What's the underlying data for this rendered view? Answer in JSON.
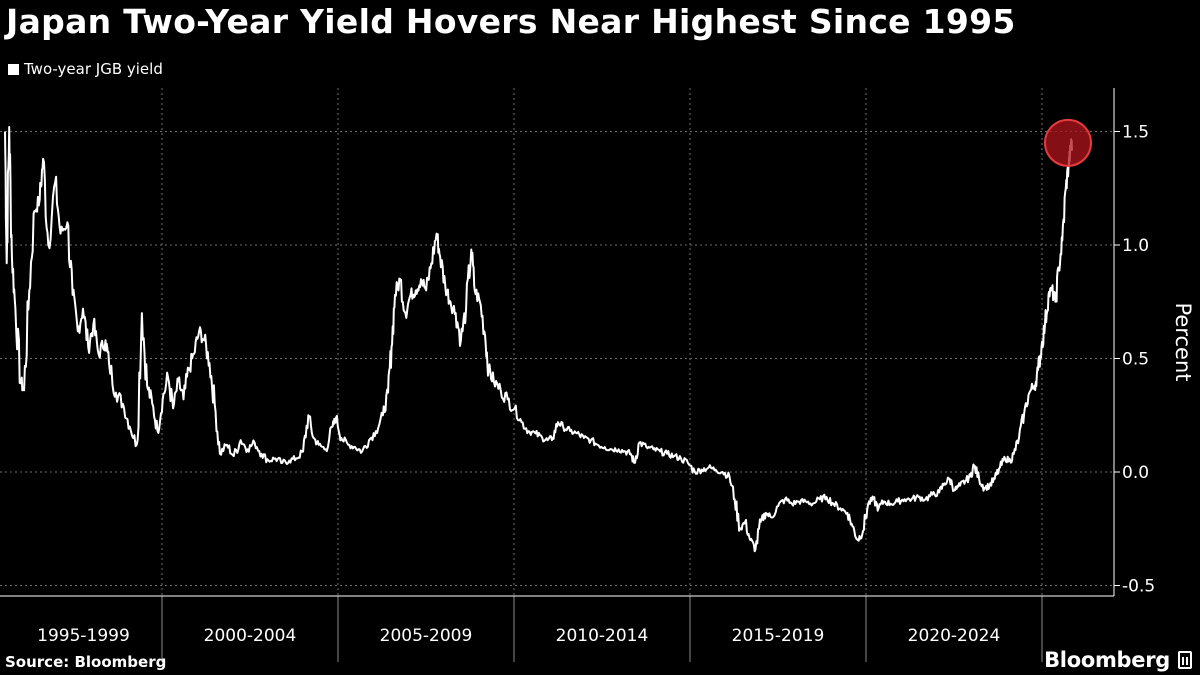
{
  "title": "Japan Two-Year Yield Hovers Near Highest Since 1995",
  "legend": {
    "label": "Two-year JGB yield"
  },
  "source": "Source: Bloomberg",
  "brand": {
    "name": "Bloomberg",
    "icon": "bloomberg-terminal-icon"
  },
  "colors": {
    "background": "#000000",
    "line": "#ffffff",
    "grid": "#6e6e6e",
    "highlight_fill": "#b0161c",
    "highlight_stroke": "#e63a3f"
  },
  "chart_data": {
    "type": "line",
    "title": "Japan Two-Year Yield Hovers Near Highest Since 1995",
    "ylabel": "Percent",
    "ylim": [
      -0.5,
      1.7
    ],
    "yticks": [
      "1.5",
      "1.0",
      "0.5",
      "0.0",
      "-0.5"
    ],
    "yaxis_side": "right",
    "grid": true,
    "x_categories": [
      "1995-1999",
      "2000-2004",
      "2005-2009",
      "2010-2014",
      "2015-2019",
      "2020-2024"
    ],
    "x_range": [
      1995.0,
      2025.9
    ],
    "highlight": {
      "x": 2025.75,
      "y": 1.45,
      "shape": "circle"
    },
    "series": [
      {
        "name": "Two-year JGB yield",
        "points": [
          [
            1995.0,
            1.5
          ],
          [
            1995.05,
            0.92
          ],
          [
            1995.12,
            1.52
          ],
          [
            1995.2,
            0.95
          ],
          [
            1995.3,
            0.72
          ],
          [
            1995.45,
            0.4
          ],
          [
            1995.55,
            0.36
          ],
          [
            1995.7,
            0.8
          ],
          [
            1995.85,
            1.15
          ],
          [
            1996.0,
            1.2
          ],
          [
            1996.1,
            1.38
          ],
          [
            1996.25,
            1.0
          ],
          [
            1996.45,
            1.28
          ],
          [
            1996.6,
            1.05
          ],
          [
            1996.8,
            1.1
          ],
          [
            1996.95,
            0.78
          ],
          [
            1997.1,
            0.62
          ],
          [
            1997.25,
            0.72
          ],
          [
            1997.4,
            0.55
          ],
          [
            1997.55,
            0.65
          ],
          [
            1997.7,
            0.52
          ],
          [
            1997.9,
            0.58
          ],
          [
            1998.0,
            0.48
          ],
          [
            1998.2,
            0.35
          ],
          [
            1998.4,
            0.3
          ],
          [
            1998.6,
            0.2
          ],
          [
            1998.8,
            0.12
          ],
          [
            1998.95,
            0.7
          ],
          [
            1999.1,
            0.38
          ],
          [
            1999.25,
            0.3
          ],
          [
            1999.4,
            0.18
          ],
          [
            1999.55,
            0.32
          ],
          [
            1999.7,
            0.42
          ],
          [
            1999.85,
            0.28
          ],
          [
            2000.0,
            0.4
          ],
          [
            2000.15,
            0.32
          ],
          [
            2000.3,
            0.45
          ],
          [
            2000.45,
            0.52
          ],
          [
            2000.6,
            0.62
          ],
          [
            2000.75,
            0.58
          ],
          [
            2000.9,
            0.48
          ],
          [
            2001.05,
            0.3
          ],
          [
            2001.2,
            0.08
          ],
          [
            2001.4,
            0.12
          ],
          [
            2001.6,
            0.07
          ],
          [
            2001.8,
            0.14
          ],
          [
            2002.0,
            0.1
          ],
          [
            2002.2,
            0.13
          ],
          [
            2002.4,
            0.08
          ],
          [
            2002.6,
            0.05
          ],
          [
            2002.8,
            0.06
          ],
          [
            2003.0,
            0.04
          ],
          [
            2003.2,
            0.05
          ],
          [
            2003.4,
            0.06
          ],
          [
            2003.6,
            0.09
          ],
          [
            2003.75,
            0.25
          ],
          [
            2003.9,
            0.15
          ],
          [
            2004.05,
            0.12
          ],
          [
            2004.25,
            0.1
          ],
          [
            2004.45,
            0.2
          ],
          [
            2004.55,
            0.24
          ],
          [
            2004.7,
            0.15
          ],
          [
            2004.9,
            0.12
          ],
          [
            2005.1,
            0.11
          ],
          [
            2005.3,
            0.09
          ],
          [
            2005.5,
            0.14
          ],
          [
            2005.7,
            0.18
          ],
          [
            2005.9,
            0.25
          ],
          [
            2006.05,
            0.35
          ],
          [
            2006.15,
            0.55
          ],
          [
            2006.25,
            0.78
          ],
          [
            2006.4,
            0.85
          ],
          [
            2006.55,
            0.7
          ],
          [
            2006.7,
            0.78
          ],
          [
            2006.85,
            0.8
          ],
          [
            2007.0,
            0.85
          ],
          [
            2007.15,
            0.8
          ],
          [
            2007.3,
            0.92
          ],
          [
            2007.45,
            1.05
          ],
          [
            2007.55,
            0.95
          ],
          [
            2007.7,
            0.82
          ],
          [
            2007.85,
            0.75
          ],
          [
            2008.0,
            0.7
          ],
          [
            2008.15,
            0.58
          ],
          [
            2008.3,
            0.72
          ],
          [
            2008.45,
            0.98
          ],
          [
            2008.55,
            0.8
          ],
          [
            2008.7,
            0.75
          ],
          [
            2008.85,
            0.6
          ],
          [
            2008.95,
            0.45
          ],
          [
            2009.1,
            0.4
          ],
          [
            2009.3,
            0.36
          ],
          [
            2009.5,
            0.32
          ],
          [
            2009.7,
            0.28
          ],
          [
            2009.9,
            0.22
          ],
          [
            2010.1,
            0.18
          ],
          [
            2010.3,
            0.17
          ],
          [
            2010.5,
            0.15
          ],
          [
            2010.65,
            0.14
          ],
          [
            2010.8,
            0.15
          ],
          [
            2010.95,
            0.22
          ],
          [
            2011.1,
            0.2
          ],
          [
            2011.3,
            0.18
          ],
          [
            2011.5,
            0.17
          ],
          [
            2011.7,
            0.15
          ],
          [
            2011.9,
            0.14
          ],
          [
            2012.1,
            0.12
          ],
          [
            2012.3,
            0.11
          ],
          [
            2012.5,
            0.1
          ],
          [
            2012.7,
            0.1
          ],
          [
            2012.9,
            0.09
          ],
          [
            2013.05,
            0.08
          ],
          [
            2013.15,
            0.04
          ],
          [
            2013.3,
            0.13
          ],
          [
            2013.5,
            0.11
          ],
          [
            2013.7,
            0.1
          ],
          [
            2013.9,
            0.09
          ],
          [
            2014.1,
            0.08
          ],
          [
            2014.3,
            0.07
          ],
          [
            2014.5,
            0.06
          ],
          [
            2014.7,
            0.04
          ],
          [
            2014.9,
            0.0
          ],
          [
            2015.1,
            0.01
          ],
          [
            2015.3,
            0.02
          ],
          [
            2015.5,
            0.01
          ],
          [
            2015.7,
            0.0
          ],
          [
            2015.9,
            -0.02
          ],
          [
            2016.05,
            -0.12
          ],
          [
            2016.2,
            -0.25
          ],
          [
            2016.35,
            -0.22
          ],
          [
            2016.5,
            -0.3
          ],
          [
            2016.65,
            -0.34
          ],
          [
            2016.8,
            -0.22
          ],
          [
            2016.95,
            -0.18
          ],
          [
            2017.1,
            -0.2
          ],
          [
            2017.3,
            -0.15
          ],
          [
            2017.5,
            -0.12
          ],
          [
            2017.7,
            -0.14
          ],
          [
            2017.9,
            -0.13
          ],
          [
            2018.1,
            -0.13
          ],
          [
            2018.3,
            -0.14
          ],
          [
            2018.5,
            -0.12
          ],
          [
            2018.7,
            -0.11
          ],
          [
            2018.9,
            -0.14
          ],
          [
            2019.1,
            -0.16
          ],
          [
            2019.3,
            -0.18
          ],
          [
            2019.45,
            -0.24
          ],
          [
            2019.6,
            -0.3
          ],
          [
            2019.75,
            -0.26
          ],
          [
            2019.9,
            -0.14
          ],
          [
            2020.05,
            -0.12
          ],
          [
            2020.2,
            -0.16
          ],
          [
            2020.35,
            -0.13
          ],
          [
            2020.55,
            -0.14
          ],
          [
            2020.75,
            -0.13
          ],
          [
            2020.95,
            -0.12
          ],
          [
            2021.15,
            -0.12
          ],
          [
            2021.35,
            -0.11
          ],
          [
            2021.55,
            -0.12
          ],
          [
            2021.75,
            -0.1
          ],
          [
            2021.95,
            -0.09
          ],
          [
            2022.1,
            -0.05
          ],
          [
            2022.25,
            -0.03
          ],
          [
            2022.4,
            -0.08
          ],
          [
            2022.55,
            -0.06
          ],
          [
            2022.7,
            -0.04
          ],
          [
            2022.85,
            -0.02
          ],
          [
            2022.95,
            0.03
          ],
          [
            2023.1,
            -0.03
          ],
          [
            2023.25,
            -0.07
          ],
          [
            2023.4,
            -0.06
          ],
          [
            2023.55,
            -0.03
          ],
          [
            2023.7,
            0.02
          ],
          [
            2023.85,
            0.06
          ],
          [
            2024.0,
            0.05
          ],
          [
            2024.1,
            0.08
          ],
          [
            2024.25,
            0.15
          ],
          [
            2024.4,
            0.26
          ],
          [
            2024.55,
            0.35
          ],
          [
            2024.7,
            0.38
          ],
          [
            2024.8,
            0.45
          ],
          [
            2024.9,
            0.55
          ],
          [
            2025.0,
            0.65
          ],
          [
            2025.1,
            0.78
          ],
          [
            2025.2,
            0.8
          ],
          [
            2025.3,
            0.75
          ],
          [
            2025.4,
            0.9
          ],
          [
            2025.5,
            1.02
          ],
          [
            2025.6,
            1.25
          ],
          [
            2025.68,
            1.35
          ],
          [
            2025.72,
            1.4
          ],
          [
            2025.75,
            1.45
          ],
          [
            2025.78,
            1.43
          ]
        ]
      }
    ]
  }
}
